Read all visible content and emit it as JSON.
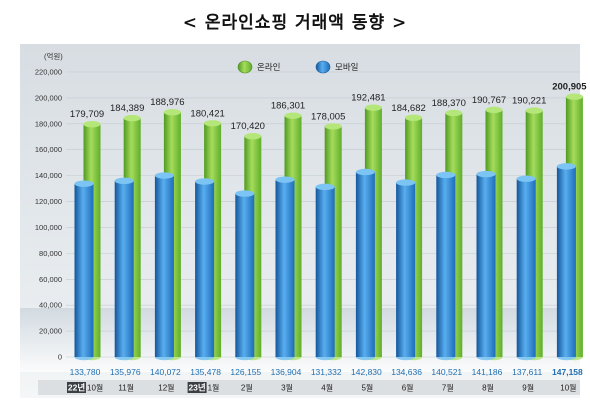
{
  "title": "< 온라인쇼핑 거래액 동향 >",
  "chart_data": {
    "type": "bar",
    "unit": "(억원)",
    "categories": [
      "10월",
      "11월",
      "12월",
      "1월",
      "2월",
      "3월",
      "4월",
      "5월",
      "6월",
      "7월",
      "8월",
      "9월",
      "10월"
    ],
    "year_tags": [
      {
        "index": 0,
        "label": "22년"
      },
      {
        "index": 3,
        "label": "23년"
      }
    ],
    "series": [
      {
        "name": "온라인",
        "color": "#7cc142",
        "values": [
          179709,
          184389,
          188976,
          180421,
          170420,
          186301,
          178005,
          192481,
          184682,
          188370,
          190767,
          190221,
          200905
        ],
        "labels": [
          "179,709",
          "184,389",
          "188,976",
          "180,421",
          "170,420",
          "186,301",
          "178,005",
          "192,481",
          "184,682",
          "188,370",
          "190,767",
          "190,221",
          "200,905"
        ]
      },
      {
        "name": "모바일",
        "color": "#2f86cf",
        "values": [
          133780,
          135976,
          140072,
          135478,
          126155,
          136904,
          131332,
          142830,
          134636,
          140521,
          141186,
          137611,
          147158
        ],
        "labels": [
          "133,780",
          "135,976",
          "140,072",
          "135,478",
          "126,155",
          "136,904",
          "131,332",
          "142,830",
          "134,636",
          "140,521",
          "141,186",
          "137,611",
          "147,158"
        ]
      }
    ],
    "ylim": [
      0,
      220000
    ],
    "yticks": [
      "0",
      "20,000",
      "40,000",
      "60,000",
      "80,000",
      "100,000",
      "120,000",
      "140,000",
      "160,000",
      "180,000",
      "200,000",
      "220,000"
    ],
    "grid": true,
    "legend_position": "top-center",
    "highlight_last": true
  }
}
